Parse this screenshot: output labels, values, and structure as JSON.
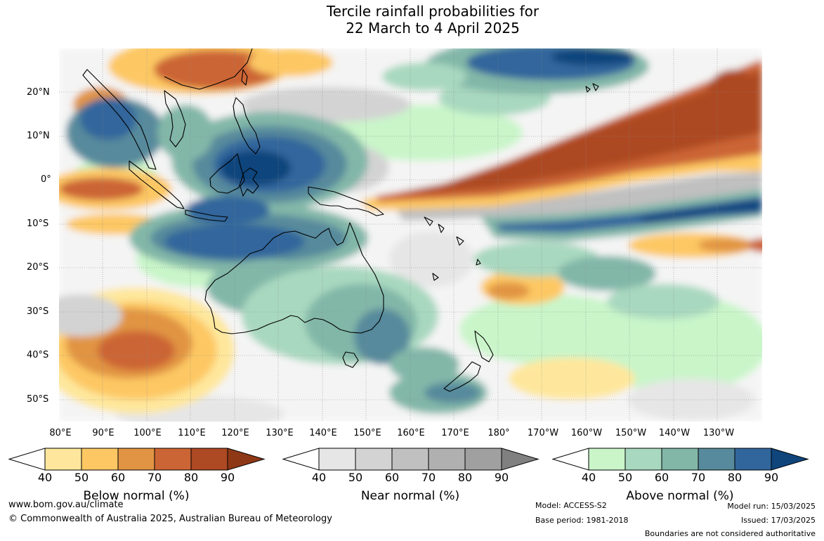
{
  "title": {
    "line1": "Tercile rainfall probabilities for",
    "line2": "22 March to 4 April 2025"
  },
  "map": {
    "lat_labels": [
      "20°N",
      "10°N",
      "0°",
      "10°S",
      "20°S",
      "30°S",
      "40°S",
      "50°S"
    ],
    "lon_labels": [
      "80°E",
      "90°E",
      "100°E",
      "110°E",
      "120°E",
      "130°E",
      "140°E",
      "150°E",
      "160°E",
      "170°E",
      "180°",
      "170°W",
      "160°W",
      "150°W",
      "140°W",
      "130°W"
    ]
  },
  "legends": [
    {
      "title": "Below normal (%)",
      "ticks": [
        "40",
        "50",
        "60",
        "70",
        "80",
        "90"
      ],
      "colors": [
        "#ffffff",
        "#fee79c",
        "#fdc864",
        "#e19443",
        "#cc6535",
        "#ad4923",
        "#8f3816"
      ]
    },
    {
      "title": "Near normal (%)",
      "ticks": [
        "40",
        "50",
        "60",
        "70",
        "80",
        "90"
      ],
      "colors": [
        "#ffffff",
        "#e6e6e6",
        "#d3d3d3",
        "#c0c0c0",
        "#b0b0b0",
        "#a0a0a0",
        "#808080"
      ]
    },
    {
      "title": "Above normal (%)",
      "ticks": [
        "40",
        "50",
        "60",
        "70",
        "80",
        "90"
      ],
      "colors": [
        "#ffffff",
        "#c9f5c9",
        "#a8d8bf",
        "#82b7a8",
        "#568a9c",
        "#31669c",
        "#10457c"
      ]
    }
  ],
  "footer": {
    "website": "www.bom.gov.au/climate",
    "copyright": "© Commonwealth of Australia 2025, Australian Bureau of Meteorology",
    "model": "Model: ACCESS-S2",
    "base_period": "Base period: 1981-2018",
    "model_run": "Model run: 15/03/2025",
    "issued": "Issued: 17/03/2025",
    "disclaimer": "Boundaries are not considered authoritative"
  }
}
